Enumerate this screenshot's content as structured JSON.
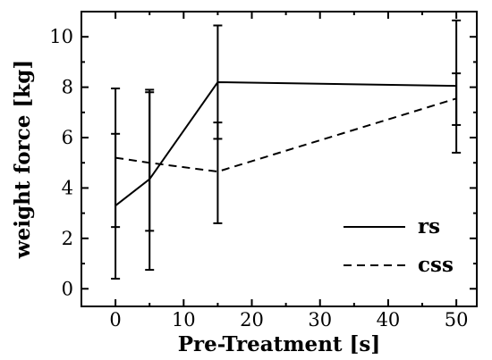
{
  "chart_data": {
    "type": "line",
    "xlabel": "Pre-Treatment [s]",
    "ylabel": "weight force [kg]",
    "xlim": [
      -5,
      53
    ],
    "ylim": [
      -0.7,
      11
    ],
    "x_ticks": [
      0,
      10,
      20,
      30,
      40,
      50
    ],
    "y_ticks": [
      0,
      2,
      4,
      6,
      8,
      10
    ],
    "grid": false,
    "legend_position": "bottom-right",
    "series": [
      {
        "name": "rs",
        "dash": "solid",
        "x": [
          0,
          5,
          15,
          50
        ],
        "y": [
          3.3,
          4.35,
          8.2,
          8.05
        ],
        "err_low": [
          0.4,
          0.75,
          2.6,
          5.4
        ],
        "err_high": [
          7.95,
          7.9,
          10.45,
          10.65
        ]
      },
      {
        "name": "css",
        "dash": "dashed",
        "x": [
          0,
          5,
          15,
          50
        ],
        "y": [
          5.2,
          5.0,
          4.65,
          7.55
        ],
        "err_low": [
          2.45,
          2.3,
          5.95,
          6.5
        ],
        "err_high": [
          6.15,
          7.8,
          6.6,
          8.55
        ]
      }
    ]
  }
}
